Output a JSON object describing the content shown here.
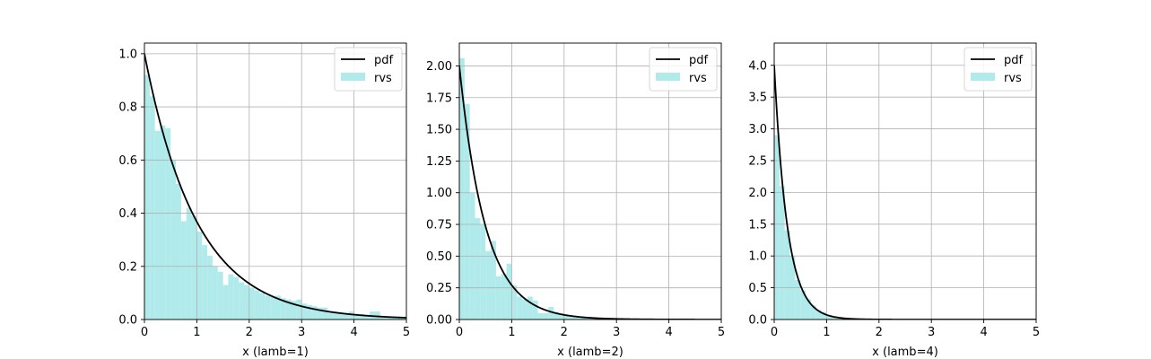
{
  "chart_data": [
    {
      "type": "bar",
      "xlabel": "x (lamb=1)",
      "xlim": [
        0,
        5
      ],
      "ylim": [
        0,
        1.04
      ],
      "xticks": [
        0,
        1,
        2,
        3,
        4,
        5
      ],
      "yticks": [
        0.0,
        0.2,
        0.4,
        0.6,
        0.8,
        1.0
      ],
      "ytick_labels": [
        "0.0",
        "0.2",
        "0.4",
        "0.6",
        "0.8",
        "1.0"
      ],
      "grid": true,
      "legend": {
        "placement": "top-right",
        "entries": [
          "pdf",
          "rvs"
        ]
      },
      "colors": {
        "pdf": "#000000",
        "rvs": "#b0eaea"
      },
      "series": [
        {
          "name": "rvs",
          "type": "histogram",
          "bin_width": 0.1,
          "x": [
            0.05,
            0.15,
            0.25,
            0.35,
            0.45,
            0.55,
            0.65,
            0.75,
            0.85,
            0.95,
            1.05,
            1.15,
            1.25,
            1.35,
            1.45,
            1.55,
            1.65,
            1.75,
            1.85,
            1.95,
            2.05,
            2.15,
            2.25,
            2.35,
            2.45,
            2.55,
            2.65,
            2.75,
            2.85,
            2.95,
            3.05,
            3.15,
            3.25,
            3.35,
            3.45,
            3.55,
            3.65,
            3.75,
            3.85,
            3.95,
            4.05,
            4.15,
            4.25,
            4.35,
            4.45,
            4.55,
            4.65,
            4.75,
            4.85,
            4.95
          ],
          "values": [
            0.92,
            0.84,
            0.71,
            0.73,
            0.72,
            0.6,
            0.51,
            0.37,
            0.42,
            0.39,
            0.33,
            0.28,
            0.24,
            0.2,
            0.18,
            0.13,
            0.17,
            0.16,
            0.14,
            0.13,
            0.12,
            0.11,
            0.1,
            0.09,
            0.085,
            0.09,
            0.08,
            0.075,
            0.07,
            0.075,
            0.06,
            0.055,
            0.05,
            0.045,
            0.045,
            0.03,
            0.03,
            0.028,
            0.025,
            0.03,
            0.022,
            0.02,
            0.018,
            0.03,
            0.03,
            0.012,
            0.01,
            0.01,
            0.008,
            0.008
          ]
        },
        {
          "name": "pdf",
          "type": "line",
          "lambda": 1
        }
      ]
    },
    {
      "type": "bar",
      "xlabel": "x (lamb=2)",
      "xlim": [
        0,
        5
      ],
      "ylim": [
        0,
        2.18
      ],
      "xticks": [
        0,
        1,
        2,
        3,
        4,
        5
      ],
      "yticks": [
        0.0,
        0.25,
        0.5,
        0.75,
        1.0,
        1.25,
        1.5,
        1.75,
        2.0
      ],
      "ytick_labels": [
        "0.00",
        "0.25",
        "0.50",
        "0.75",
        "1.00",
        "1.25",
        "1.50",
        "1.75",
        "2.00"
      ],
      "grid": true,
      "legend": {
        "placement": "top-right",
        "entries": [
          "pdf",
          "rvs"
        ]
      },
      "colors": {
        "pdf": "#000000",
        "rvs": "#b0eaea"
      },
      "series": [
        {
          "name": "rvs",
          "type": "histogram",
          "bin_width": 0.1,
          "x": [
            0.05,
            0.15,
            0.25,
            0.35,
            0.45,
            0.55,
            0.65,
            0.75,
            0.85,
            0.95,
            1.05,
            1.15,
            1.25,
            1.35,
            1.45,
            1.55,
            1.65,
            1.75,
            1.85,
            1.95,
            2.05,
            2.15,
            2.25,
            2.35,
            2.45,
            2.55,
            2.65,
            2.75,
            2.85,
            2.95,
            3.05,
            3.15,
            3.25,
            3.35,
            3.45,
            3.55,
            3.65,
            3.75,
            3.85,
            3.95,
            4.05,
            4.15,
            4.25,
            4.35,
            4.45,
            4.55,
            4.65,
            4.75,
            4.85,
            4.95
          ],
          "values": [
            2.06,
            1.7,
            1.0,
            0.8,
            0.75,
            0.54,
            0.62,
            0.34,
            0.36,
            0.44,
            0.27,
            0.18,
            0.16,
            0.18,
            0.15,
            0.05,
            0.05,
            0.1,
            0.06,
            0.04,
            0.03,
            0.03,
            0.02,
            0.02,
            0.015,
            0.015,
            0.01,
            0.01,
            0.008,
            0.006,
            0.005,
            0.005,
            0.004,
            0.004,
            0.003,
            0.003,
            0.002,
            0.002,
            0.002,
            0.002,
            0.001,
            0.001,
            0.001,
            0.001,
            0.001,
            0.001,
            0.0,
            0.0,
            0.0,
            0.0
          ]
        },
        {
          "name": "pdf",
          "type": "line",
          "lambda": 2
        }
      ]
    },
    {
      "type": "bar",
      "xlabel": "x (lamb=4)",
      "xlim": [
        0,
        5
      ],
      "ylim": [
        0,
        4.35
      ],
      "xticks": [
        0,
        1,
        2,
        3,
        4,
        5
      ],
      "yticks": [
        0.0,
        0.5,
        1.0,
        1.5,
        2.0,
        2.5,
        3.0,
        3.5,
        4.0
      ],
      "ytick_labels": [
        "0.0",
        "0.5",
        "1.0",
        "1.5",
        "2.0",
        "2.5",
        "3.0",
        "3.5",
        "4.0"
      ],
      "grid": true,
      "legend": {
        "placement": "top-right",
        "entries": [
          "pdf",
          "rvs"
        ]
      },
      "colors": {
        "pdf": "#000000",
        "rvs": "#b0eaea"
      },
      "series": [
        {
          "name": "rvs",
          "type": "histogram",
          "bin_width": 0.1,
          "x": [
            0.05,
            0.15,
            0.25,
            0.35,
            0.45,
            0.55,
            0.65,
            0.75,
            0.85,
            0.95,
            1.05,
            1.15,
            1.25,
            1.35,
            1.45,
            1.55,
            1.65,
            1.75,
            1.85,
            1.95
          ],
          "values": [
            2.9,
            2.1,
            1.4,
            1.0,
            0.62,
            0.46,
            0.32,
            0.22,
            0.15,
            0.12,
            0.07,
            0.05,
            0.04,
            0.03,
            0.02,
            0.015,
            0.01,
            0.008,
            0.006,
            0.004
          ]
        },
        {
          "name": "pdf",
          "type": "line",
          "lambda": 4
        }
      ]
    }
  ]
}
